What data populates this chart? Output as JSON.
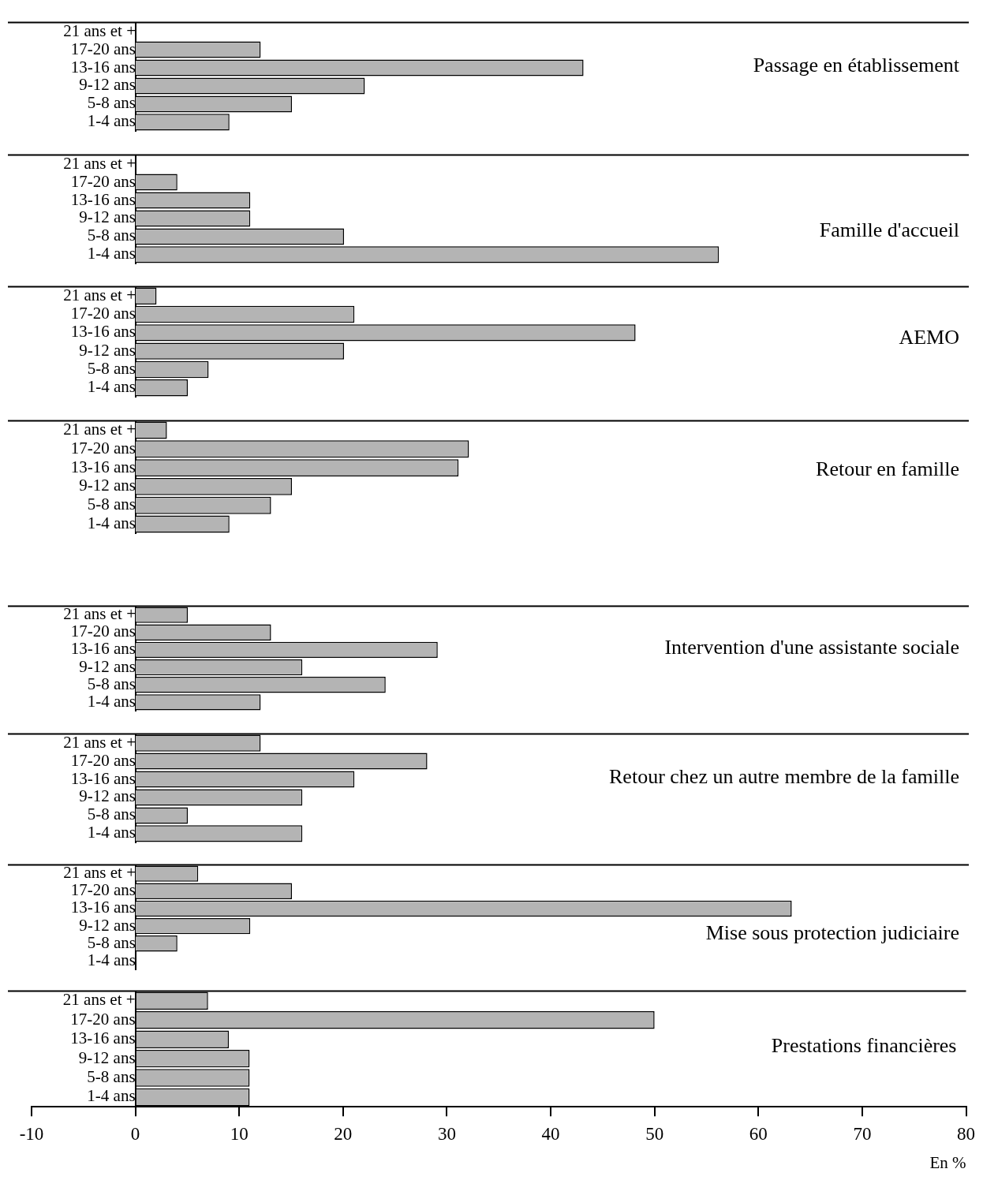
{
  "chart_data": [
    {
      "type": "bar",
      "orientation": "horizontal",
      "title": "Passage en établissement",
      "categories": [
        "21 ans et +",
        "17-20 ans",
        "13-16 ans",
        "9-12 ans",
        "5-8 ans",
        "1-4 ans"
      ],
      "values": [
        0,
        12,
        43,
        22,
        15,
        9
      ],
      "color": "#b4b4b4",
      "xlim": [
        -10,
        80
      ],
      "tick_labels": "y"
    },
    {
      "type": "bar",
      "orientation": "horizontal",
      "title": "Famille d'accueil",
      "categories": [
        "21 ans et +",
        "17-20 ans",
        "13-16 ans",
        "9-12 ans",
        "5-8 ans",
        "1-4 ans"
      ],
      "values": [
        0,
        4,
        11,
        11,
        20,
        56
      ],
      "color": "#b4b4b4",
      "xlim": [
        -10,
        80
      ],
      "tick_labels": "y"
    },
    {
      "type": "bar",
      "orientation": "horizontal",
      "title": "AEMO",
      "categories": [
        "21 ans et +",
        "17-20 ans",
        "13-16 ans",
        "9-12 ans",
        "5-8 ans",
        "1-4 ans"
      ],
      "values": [
        2,
        21,
        48,
        20,
        7,
        5
      ],
      "color": "#b4b4b4",
      "xlim": [
        -10,
        80
      ],
      "tick_labels": "y"
    },
    {
      "type": "bar",
      "orientation": "horizontal",
      "title": "Retour en famille",
      "categories": [
        "21 ans et +",
        "17-20 ans",
        "13-16 ans",
        "9-12 ans",
        "5-8 ans",
        "1-4 ans"
      ],
      "values": [
        3,
        32,
        31,
        15,
        13,
        9
      ],
      "color": "#b4b4b4",
      "xlim": [
        -10,
        80
      ],
      "tick_labels": "y"
    },
    {
      "type": "bar",
      "orientation": "horizontal",
      "title": "Intervention d'une assistante sociale",
      "categories": [
        "21 ans et +",
        "17-20 ans",
        "13-16 ans",
        "9-12 ans",
        "5-8 ans",
        "1-4 ans"
      ],
      "values": [
        5,
        13,
        29,
        16,
        24,
        12
      ],
      "color": "#b4b4b4",
      "xlim": [
        -10,
        80
      ],
      "tick_labels": "y"
    },
    {
      "type": "bar",
      "orientation": "horizontal",
      "title": "Retour chez un autre membre de la famille",
      "categories": [
        "21 ans et +",
        "17-20 ans",
        "13-16 ans",
        "9-12 ans",
        "5-8 ans",
        "1-4 ans"
      ],
      "values": [
        12,
        28,
        21,
        16,
        5,
        16
      ],
      "color": "#b4b4b4",
      "xlim": [
        -10,
        80
      ],
      "tick_labels": "y"
    },
    {
      "type": "bar",
      "orientation": "horizontal",
      "title": "Mise sous protection judiciaire",
      "categories": [
        "21 ans et +",
        "17-20 ans",
        "13-16 ans",
        "9-12 ans",
        "5-8 ans",
        "1-4 ans"
      ],
      "values": [
        6,
        15,
        63,
        11,
        4,
        0
      ],
      "color": "#b4b4b4",
      "xlim": [
        -10,
        80
      ],
      "tick_labels": "y"
    },
    {
      "type": "bar",
      "orientation": "horizontal",
      "title": "Prestations financières",
      "xlabel": "En %",
      "categories": [
        "21 ans et +",
        "17-20 ans",
        "13-16 ans",
        "9-12 ans",
        "5-8 ans",
        "1-4 ans"
      ],
      "values": [
        7,
        50,
        9,
        11,
        11,
        11
      ],
      "color": "#b4b4b4",
      "xlim": [
        -10,
        80
      ],
      "xticks": [
        -10,
        0,
        10,
        20,
        30,
        40,
        50,
        60,
        70,
        80
      ]
    }
  ]
}
